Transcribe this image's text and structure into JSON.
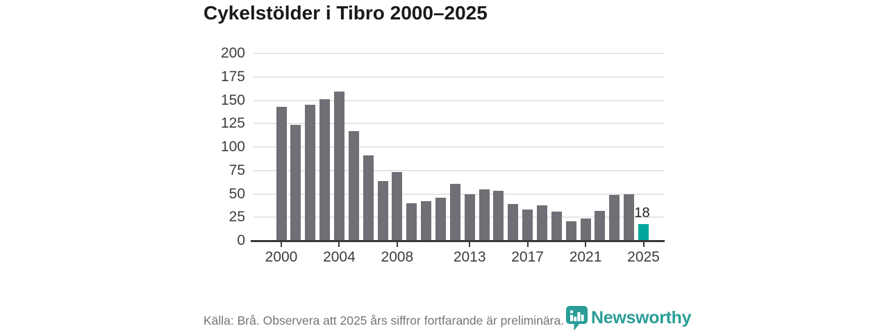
{
  "title": "Cykelstölder i Tibro 2000–2025",
  "chart_data": {
    "type": "bar",
    "title": "Cykelstölder i Tibro 2000–2025",
    "xlabel": "",
    "ylabel": "",
    "ylim": [
      0,
      200
    ],
    "y_ticks": [
      0,
      25,
      50,
      75,
      100,
      125,
      150,
      175,
      200
    ],
    "x_tick_labels": [
      "2000",
      "2004",
      "2008",
      "2013",
      "2017",
      "2021",
      "2025"
    ],
    "grid": "horizontal",
    "legend": "none",
    "categories": [
      2000,
      2001,
      2002,
      2003,
      2004,
      2005,
      2006,
      2007,
      2008,
      2009,
      2010,
      2011,
      2012,
      2013,
      2014,
      2015,
      2016,
      2017,
      2018,
      2019,
      2020,
      2021,
      2022,
      2023,
      2024,
      2025
    ],
    "values": [
      143,
      124,
      145,
      151,
      159,
      117,
      91,
      64,
      73,
      40,
      42,
      46,
      61,
      50,
      55,
      53,
      39,
      33,
      38,
      31,
      21,
      24,
      32,
      49,
      50,
      18
    ],
    "bar_color": "#6f6f75",
    "highlight_year": 2025,
    "highlight_color": "#00a69c",
    "annotations": [
      {
        "year": 2025,
        "text": "18"
      }
    ]
  },
  "footer": {
    "source_note": "Källa: Brå. Observera att 2025 års siffror fortfarande är preliminära."
  },
  "logo": {
    "wordmark": "Newsworthy",
    "color": "#2a9d97",
    "icon": "newsworthy-bubble-bars-icon"
  }
}
